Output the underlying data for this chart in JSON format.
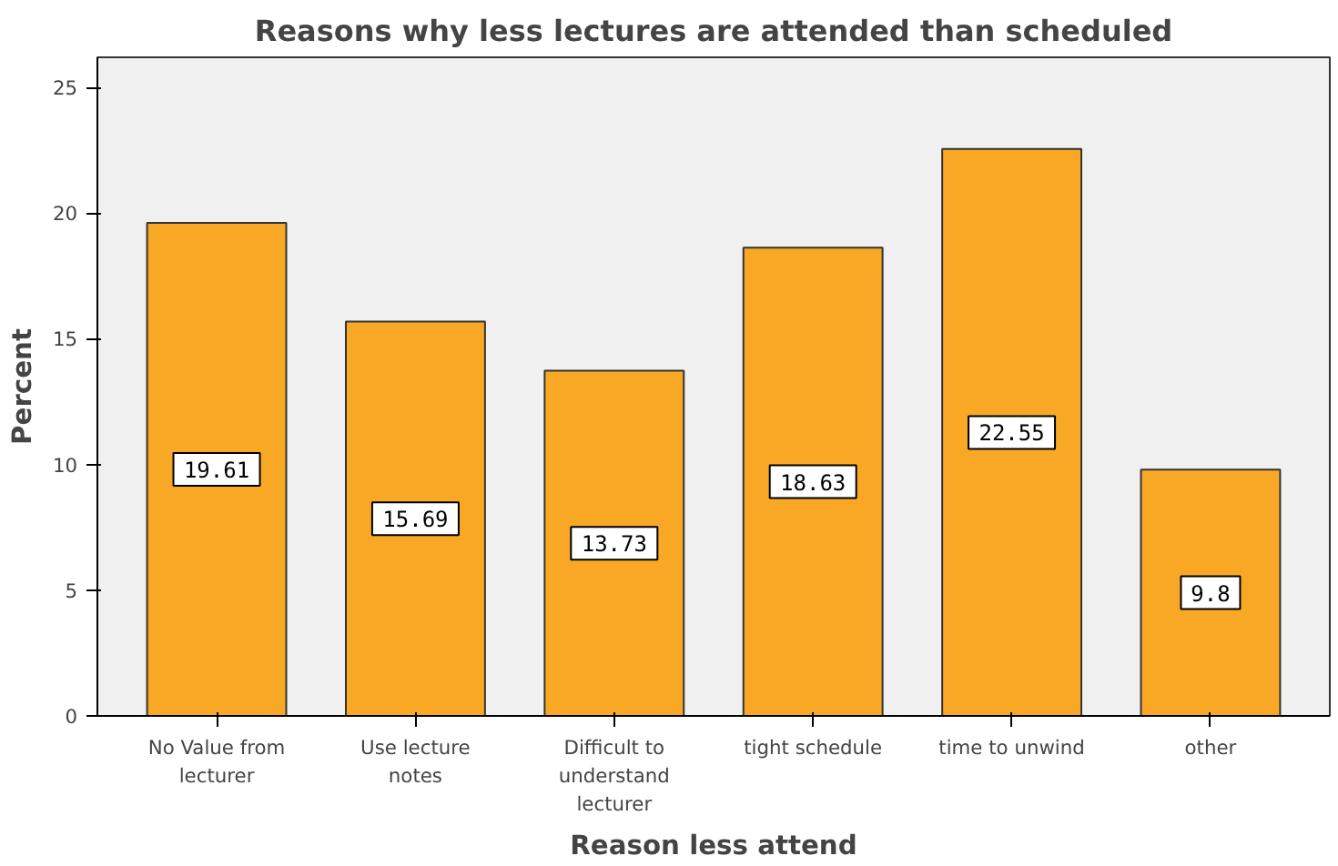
{
  "chart_data": {
    "type": "bar",
    "title": "Reasons why less lectures are attended than scheduled",
    "xlabel": "Reason less attend",
    "ylabel": "Percent",
    "categories": [
      "No Value from lecturer",
      "Use lecture notes",
      "Difficult to understand lecturer",
      "tight schedule",
      "time to unwind",
      "other"
    ],
    "values": [
      19.61,
      15.69,
      13.73,
      18.63,
      22.55,
      9.8
    ],
    "color": "#f9a825",
    "ylim": [
      0,
      26.2
    ],
    "yticks": [
      0,
      5,
      10,
      15,
      20,
      25
    ],
    "grid": false,
    "data_labels": true
  }
}
